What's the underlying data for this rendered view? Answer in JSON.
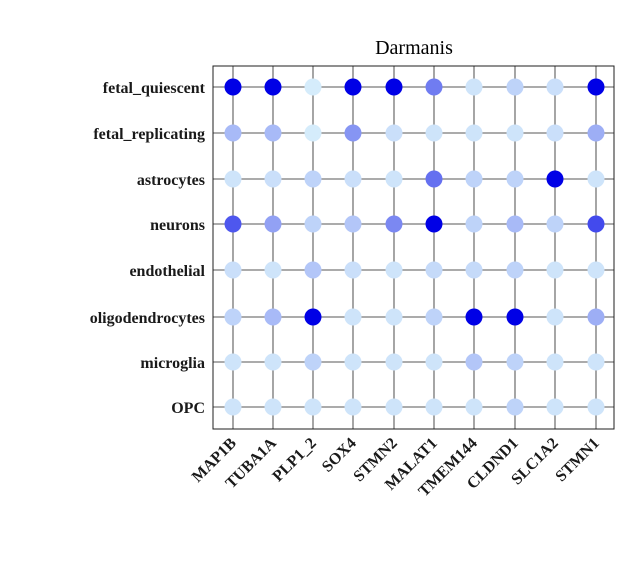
{
  "chart_data": {
    "type": "dot-matrix",
    "title": "Darmanis",
    "rows": [
      "fetal_quiescent",
      "fetal_replicating",
      "astrocytes",
      "neurons",
      "endothelial",
      "oligodendrocytes",
      "microglia",
      "OPC"
    ],
    "columns": [
      "MAP1B",
      "TUBA1A",
      "PLP1_2",
      "SOX4",
      "STMN2",
      "MALAT1",
      "TMEM144",
      "CLDND1",
      "SLC1A2",
      "STMN1"
    ],
    "values": [
      [
        1.0,
        1.0,
        0.05,
        1.0,
        1.0,
        0.5,
        0.08,
        0.15,
        0.1,
        1.0
      ],
      [
        0.25,
        0.25,
        0.05,
        0.4,
        0.1,
        0.08,
        0.08,
        0.08,
        0.1,
        0.3
      ],
      [
        0.08,
        0.1,
        0.15,
        0.1,
        0.08,
        0.55,
        0.15,
        0.15,
        1.0,
        0.08
      ],
      [
        0.65,
        0.35,
        0.15,
        0.2,
        0.45,
        1.0,
        0.15,
        0.25,
        0.15,
        0.7
      ],
      [
        0.1,
        0.08,
        0.2,
        0.1,
        0.08,
        0.12,
        0.12,
        0.15,
        0.08,
        0.08
      ],
      [
        0.15,
        0.25,
        1.0,
        0.08,
        0.08,
        0.15,
        1.0,
        1.0,
        0.08,
        0.3
      ],
      [
        0.08,
        0.08,
        0.15,
        0.08,
        0.08,
        0.08,
        0.2,
        0.15,
        0.08,
        0.08
      ],
      [
        0.08,
        0.08,
        0.08,
        0.08,
        0.08,
        0.08,
        0.08,
        0.15,
        0.08,
        0.08
      ]
    ],
    "color_low": "#e0f8fc",
    "color_high": "#0000e6",
    "grid": true
  }
}
